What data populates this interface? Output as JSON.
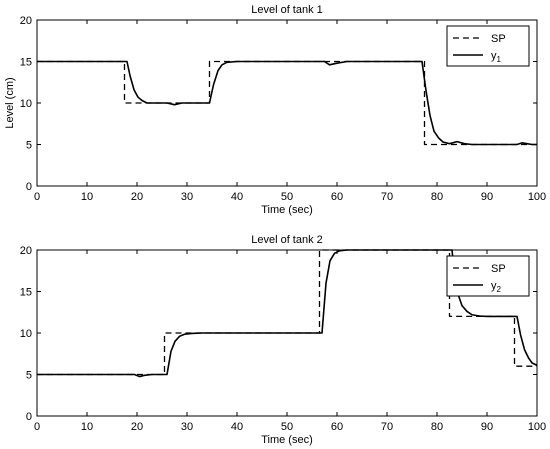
{
  "chart_data": [
    {
      "type": "line",
      "title": "Level of tank 1",
      "xlabel": "Time (sec)",
      "ylabel": "Level (cm)",
      "xlim": [
        0,
        100
      ],
      "ylim": [
        0,
        20
      ],
      "xticks": [
        0,
        10,
        20,
        30,
        40,
        50,
        60,
        70,
        80,
        90,
        100
      ],
      "yticks": [
        0,
        5,
        10,
        15,
        20
      ],
      "grid": false,
      "legend_position": "top-right",
      "series": [
        {
          "name": "SP",
          "style": "dashed",
          "x": [
            0,
            17.5,
            17.5,
            34.5,
            34.5,
            77.5,
            77.5,
            100
          ],
          "y": [
            15,
            15,
            10,
            10,
            15,
            15,
            5,
            5
          ]
        },
        {
          "name": "y",
          "name_subscript": "1",
          "style": "solid",
          "x": [
            0,
            18,
            18.6,
            19.4,
            20.2,
            21,
            22,
            24,
            26,
            27.5,
            29,
            31,
            33,
            34.5,
            35.3,
            36.2,
            37,
            38,
            40,
            45,
            50,
            55,
            57.5,
            58.5,
            60,
            62,
            65,
            70,
            77,
            77.8,
            78.6,
            79.4,
            80.3,
            81.2,
            82.5,
            84,
            85.5,
            87,
            90,
            94,
            96,
            97,
            98,
            99,
            100
          ],
          "y": [
            15,
            15,
            13.3,
            11.6,
            10.7,
            10.3,
            10.0,
            10.0,
            10.0,
            9.8,
            10.0,
            10.0,
            10.0,
            10.0,
            12.2,
            13.9,
            14.6,
            14.9,
            15.0,
            15.0,
            15.0,
            15.0,
            15.0,
            14.6,
            14.8,
            15.0,
            15.0,
            15.0,
            15.0,
            11.5,
            8.5,
            6.6,
            5.8,
            5.3,
            5.1,
            5.35,
            5.1,
            5.0,
            5.0,
            5.0,
            5.0,
            5.2,
            5.1,
            5.0,
            5.0
          ]
        }
      ]
    },
    {
      "type": "line",
      "title": "Level of tank 2",
      "xlabel": "Time (sec)",
      "ylabel": "",
      "xlim": [
        0,
        100
      ],
      "ylim": [
        0,
        20
      ],
      "xticks": [
        0,
        10,
        20,
        30,
        40,
        50,
        60,
        70,
        80,
        90,
        100
      ],
      "yticks": [
        0,
        5,
        10,
        15,
        20
      ],
      "grid": false,
      "legend_position": "top-right",
      "series": [
        {
          "name": "SP",
          "style": "dashed",
          "x": [
            0,
            25.5,
            25.5,
            56.5,
            56.5,
            82.5,
            82.5,
            95.5,
            95.5,
            100
          ],
          "y": [
            5,
            5,
            10,
            10,
            20,
            20,
            12,
            12,
            6,
            6
          ]
        },
        {
          "name": "y",
          "name_subscript": "2",
          "style": "solid",
          "x": [
            0,
            18,
            19.5,
            20.5,
            21.5,
            23,
            24,
            25,
            26,
            26.8,
            27.6,
            28.5,
            29.5,
            31,
            33,
            35,
            40,
            50,
            57,
            57.8,
            58.6,
            59.5,
            60.5,
            62,
            65,
            70,
            80,
            83,
            83.6,
            84.3,
            85,
            86,
            87,
            88.5,
            90,
            92,
            95,
            96,
            96.7,
            97.5,
            98.3,
            99,
            100
          ],
          "y": [
            5,
            5,
            5.0,
            4.75,
            4.9,
            5.0,
            5.0,
            5.0,
            5.0,
            7.8,
            9.0,
            9.6,
            9.85,
            9.95,
            10.0,
            10.0,
            10.0,
            10.0,
            10.0,
            16.0,
            18.7,
            19.6,
            19.9,
            20.0,
            20.0,
            20.0,
            20.0,
            20.0,
            16.5,
            14.5,
            13.3,
            12.6,
            12.2,
            12.05,
            12.0,
            12.0,
            12.0,
            12.0,
            9.8,
            8.0,
            7.0,
            6.4,
            6.1
          ]
        }
      ]
    }
  ]
}
